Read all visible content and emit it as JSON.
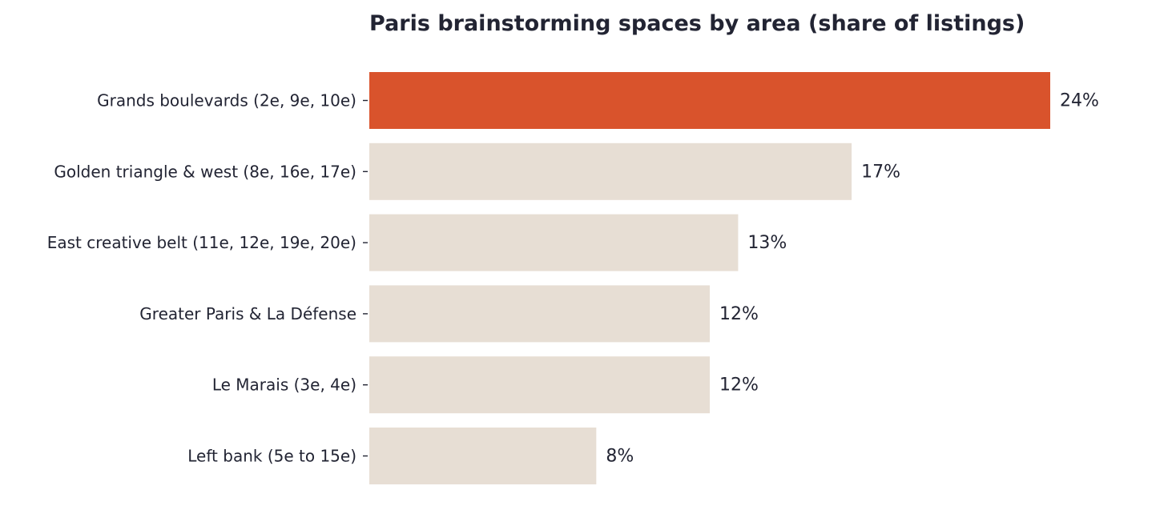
{
  "chart_data": {
    "type": "bar",
    "orientation": "horizontal",
    "title": "Paris brainstorming spaces by area (share of listings)",
    "xlabel": "",
    "ylabel": "",
    "unit": "%",
    "xlim": [
      0,
      24
    ],
    "grid": false,
    "categories": [
      "Grands boulevards (2e, 9e, 10e)",
      "Golden triangle & west (8e, 16e, 17e)",
      "East creative belt (11e, 12e, 19e, 20e)",
      "Greater Paris & La Défense",
      "Le Marais (3e, 4e)",
      "Left bank (5e to 15e)"
    ],
    "values": [
      24,
      17,
      13,
      12,
      12,
      8
    ],
    "value_labels": [
      "24%",
      "17%",
      "13%",
      "12%",
      "12%",
      "8%"
    ],
    "highlight_index": 0,
    "colors": {
      "highlight": "#d9532c",
      "default": "#e7ded4",
      "text": "#222433"
    }
  }
}
